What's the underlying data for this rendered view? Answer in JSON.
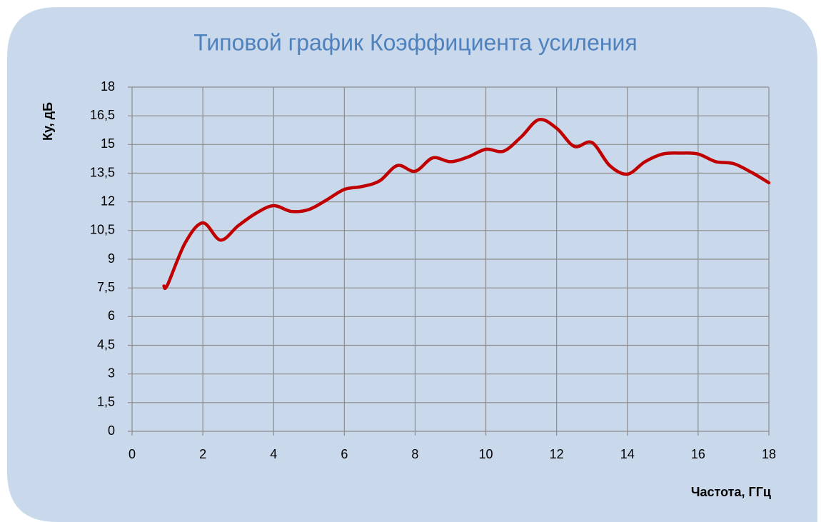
{
  "chart_data": {
    "type": "line",
    "title": "Типовой график Коэффициента усиления",
    "x_label": "Частота, ГГц",
    "y_label": "Ку, дБ",
    "xlim": [
      0,
      18
    ],
    "xticks": [
      0,
      2,
      4,
      6,
      8,
      10,
      12,
      14,
      16,
      18
    ],
    "ylim": [
      0,
      18
    ],
    "yticks": [
      0,
      {
        "value": 1.5,
        "label": "1,5"
      },
      3,
      {
        "value": 4.5,
        "label": "4,5"
      },
      6,
      {
        "value": 7.5,
        "label": "7,5"
      },
      9,
      {
        "value": 10.5,
        "label": "10,5"
      },
      12,
      {
        "value": 13.5,
        "label": "13,5"
      },
      15,
      {
        "value": 16.5,
        "label": "16,5"
      },
      18
    ],
    "grid": true,
    "x": [
      0.9,
      1.0,
      1.5,
      2.0,
      2.5,
      3.0,
      3.5,
      4.0,
      4.5,
      5.0,
      5.5,
      6.0,
      6.5,
      7.0,
      7.5,
      8.0,
      8.5,
      9.0,
      9.5,
      10.0,
      10.5,
      11.0,
      11.5,
      12.0,
      12.5,
      13.0,
      13.5,
      14.0,
      14.5,
      15.0,
      15.5,
      16.0,
      16.5,
      17.0,
      17.5,
      18.0
    ],
    "series": [
      {
        "color": "#c00000",
        "values": [
          7.6,
          7.65,
          9.85,
          10.9,
          10.0,
          10.75,
          11.4,
          11.8,
          11.5,
          11.6,
          12.1,
          12.65,
          12.8,
          13.1,
          13.9,
          13.6,
          14.3,
          14.1,
          14.35,
          14.75,
          14.65,
          15.4,
          16.3,
          15.85,
          14.9,
          15.1,
          13.9,
          13.45,
          14.1,
          14.5,
          14.55,
          14.5,
          14.1,
          14.0,
          13.55,
          13.0
        ]
      }
    ]
  }
}
